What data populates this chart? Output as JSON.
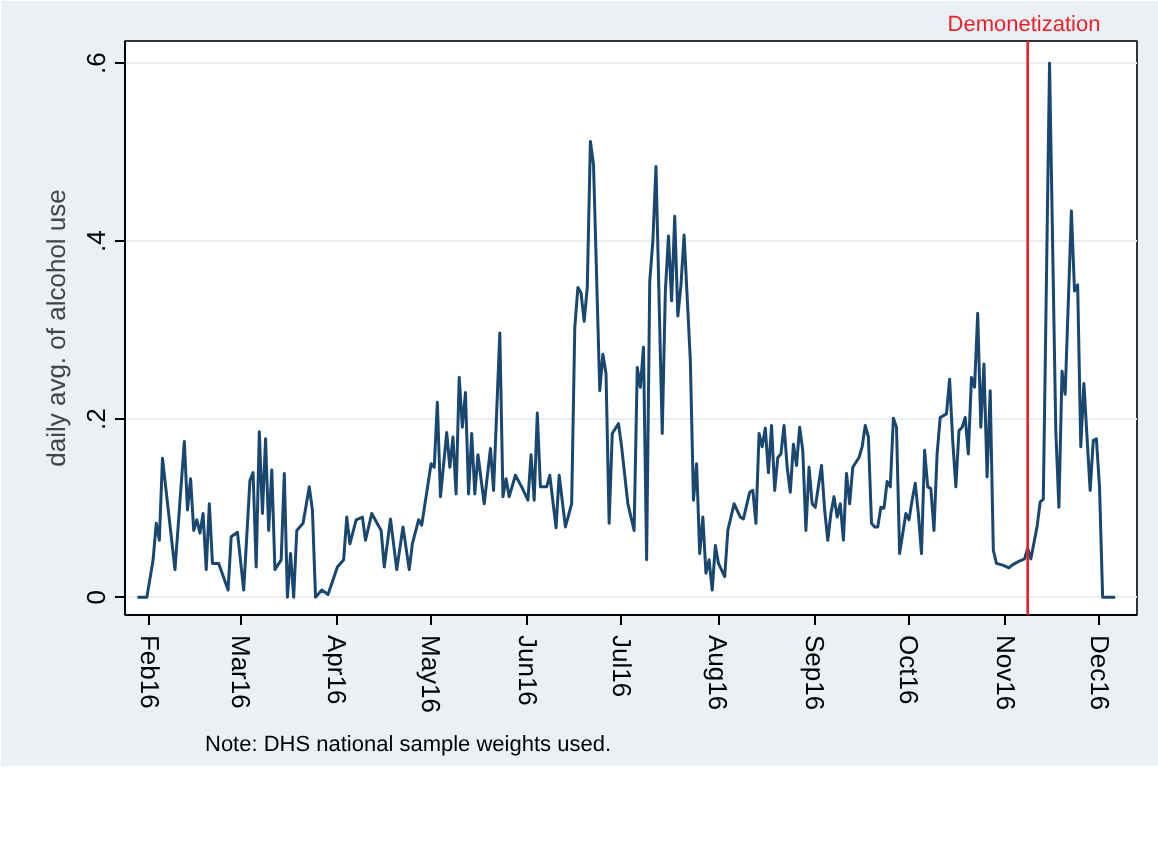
{
  "chart_data": {
    "type": "line",
    "ylabel": "daily avg. of alcohol use",
    "x": [
      "2016-01-28",
      "2016-01-31",
      "2016-02-02",
      "2016-02-03",
      "2016-02-04",
      "2016-02-05",
      "2016-02-09",
      "2016-02-12",
      "2016-02-13",
      "2016-02-14",
      "2016-02-15",
      "2016-02-16",
      "2016-02-17",
      "2016-02-18",
      "2016-02-19",
      "2016-02-20",
      "2016-02-21",
      "2016-02-23",
      "2016-02-26",
      "2016-02-27",
      "2016-02-29",
      "2016-03-02",
      "2016-03-04",
      "2016-03-05",
      "2016-03-06",
      "2016-03-07",
      "2016-03-08",
      "2016-03-09",
      "2016-03-10",
      "2016-03-11",
      "2016-03-12",
      "2016-03-14",
      "2016-03-15",
      "2016-03-16",
      "2016-03-17",
      "2016-03-18",
      "2016-03-19",
      "2016-03-21",
      "2016-03-23",
      "2016-03-24",
      "2016-03-25",
      "2016-03-27",
      "2016-03-29",
      "2016-04-01",
      "2016-04-03",
      "2016-04-04",
      "2016-04-05",
      "2016-04-07",
      "2016-04-09",
      "2016-04-10",
      "2016-04-12",
      "2016-04-15",
      "2016-04-16",
      "2016-04-18",
      "2016-04-20",
      "2016-04-22",
      "2016-04-24",
      "2016-04-25",
      "2016-04-27",
      "2016-04-28",
      "2016-05-01",
      "2016-05-02",
      "2016-05-03",
      "2016-05-04",
      "2016-05-06",
      "2016-05-07",
      "2016-05-08",
      "2016-05-09",
      "2016-05-10",
      "2016-05-11",
      "2016-05-12",
      "2016-05-13",
      "2016-05-14",
      "2016-05-15",
      "2016-05-16",
      "2016-05-18",
      "2016-05-20",
      "2016-05-21",
      "2016-05-23",
      "2016-05-24",
      "2016-05-25",
      "2016-05-26",
      "2016-05-28",
      "2016-05-30",
      "2016-06-01",
      "2016-06-02",
      "2016-06-03",
      "2016-06-04",
      "2016-06-05",
      "2016-06-07",
      "2016-06-08",
      "2016-06-10",
      "2016-06-11",
      "2016-06-13",
      "2016-06-15",
      "2016-06-16",
      "2016-06-17",
      "2016-06-18",
      "2016-06-19",
      "2016-06-20",
      "2016-06-21",
      "2016-06-22",
      "2016-06-24",
      "2016-06-25",
      "2016-06-26",
      "2016-06-27",
      "2016-06-28",
      "2016-06-30",
      "2016-07-01",
      "2016-07-03",
      "2016-07-05",
      "2016-07-06",
      "2016-07-07",
      "2016-07-08",
      "2016-07-09",
      "2016-07-10",
      "2016-07-11",
      "2016-07-12",
      "2016-07-13",
      "2016-07-14",
      "2016-07-15",
      "2016-07-16",
      "2016-07-17",
      "2016-07-18",
      "2016-07-19",
      "2016-07-20",
      "2016-07-21",
      "2016-07-23",
      "2016-07-24",
      "2016-07-25",
      "2016-07-26",
      "2016-07-27",
      "2016-07-28",
      "2016-07-29",
      "2016-07-30",
      "2016-07-31",
      "2016-08-01",
      "2016-08-03",
      "2016-08-04",
      "2016-08-06",
      "2016-08-08",
      "2016-08-09",
      "2016-08-11",
      "2016-08-12",
      "2016-08-13",
      "2016-08-14",
      "2016-08-15",
      "2016-08-16",
      "2016-08-17",
      "2016-08-18",
      "2016-08-19",
      "2016-08-20",
      "2016-08-21",
      "2016-08-22",
      "2016-08-23",
      "2016-08-24",
      "2016-08-25",
      "2016-08-26",
      "2016-08-27",
      "2016-08-28",
      "2016-08-29",
      "2016-08-30",
      "2016-08-31",
      "2016-09-01",
      "2016-09-03",
      "2016-09-04",
      "2016-09-05",
      "2016-09-06",
      "2016-09-07",
      "2016-09-08",
      "2016-09-09",
      "2016-09-10",
      "2016-09-11",
      "2016-09-12",
      "2016-09-13",
      "2016-09-15",
      "2016-09-16",
      "2016-09-17",
      "2016-09-18",
      "2016-09-19",
      "2016-09-20",
      "2016-09-21",
      "2016-09-22",
      "2016-09-23",
      "2016-09-24",
      "2016-09-25",
      "2016-09-26",
      "2016-09-27",
      "2016-09-28",
      "2016-09-30",
      "2016-10-01",
      "2016-10-02",
      "2016-10-03",
      "2016-10-04",
      "2016-10-05",
      "2016-10-06",
      "2016-10-07",
      "2016-10-08",
      "2016-10-09",
      "2016-10-10",
      "2016-10-11",
      "2016-10-13",
      "2016-10-14",
      "2016-10-15",
      "2016-10-16",
      "2016-10-17",
      "2016-10-18",
      "2016-10-19",
      "2016-10-20",
      "2016-10-21",
      "2016-10-22",
      "2016-10-23",
      "2016-10-24",
      "2016-10-25",
      "2016-10-26",
      "2016-10-27",
      "2016-10-28",
      "2016-10-29",
      "2016-10-31",
      "2016-11-02",
      "2016-11-03",
      "2016-11-05",
      "2016-11-07",
      "2016-11-08",
      "2016-11-09",
      "2016-11-11",
      "2016-11-12",
      "2016-11-13",
      "2016-11-15",
      "2016-11-17",
      "2016-11-18",
      "2016-11-19",
      "2016-11-20",
      "2016-11-22",
      "2016-11-23",
      "2016-11-24",
      "2016-11-25",
      "2016-11-26",
      "2016-11-28",
      "2016-11-29",
      "2016-11-30",
      "2016-12-01",
      "2016-12-02",
      "2016-12-06"
    ],
    "series": [
      {
        "color": "#1a476f",
        "values": [
          0,
          0,
          0.042,
          0.083,
          0.064,
          0.156,
          0.031,
          0.175,
          0.098,
          0.133,
          0.075,
          0.087,
          0.072,
          0.094,
          0.031,
          0.105,
          0.038,
          0.038,
          0.008,
          0.068,
          0.073,
          0.008,
          0.131,
          0.14,
          0.034,
          0.186,
          0.094,
          0.178,
          0.075,
          0.143,
          0.031,
          0.042,
          0.139,
          0,
          0.049,
          0,
          0.075,
          0.083,
          0.124,
          0.098,
          0,
          0.008,
          0.003,
          0.034,
          0.042,
          0.09,
          0.06,
          0.087,
          0.09,
          0.064,
          0.094,
          0.075,
          0.034,
          0.088,
          0.031,
          0.079,
          0.031,
          0.06,
          0.087,
          0.081,
          0.15,
          0.146,
          0.219,
          0.113,
          0.185,
          0.146,
          0.18,
          0.116,
          0.247,
          0.191,
          0.23,
          0.116,
          0.184,
          0.116,
          0.16,
          0.105,
          0.167,
          0.12,
          0.297,
          0.113,
          0.133,
          0.113,
          0.137,
          0.124,
          0.109,
          0.16,
          0.109,
          0.207,
          0.124,
          0.124,
          0.137,
          0.078,
          0.137,
          0.079,
          0.105,
          0.303,
          0.348,
          0.342,
          0.31,
          0.348,
          0.512,
          0.486,
          0.232,
          0.273,
          0.251,
          0.083,
          0.184,
          0.195,
          0.169,
          0.105,
          0.075,
          0.258,
          0.236,
          0.281,
          0.042,
          0.355,
          0.4,
          0.484,
          0.333,
          0.184,
          0.344,
          0.406,
          0.333,
          0.428,
          0.316,
          0.351,
          0.407,
          0.266,
          0.109,
          0.15,
          0.049,
          0.09,
          0.027,
          0.042,
          0.008,
          0.058,
          0.038,
          0.023,
          0.075,
          0.105,
          0.09,
          0.088,
          0.118,
          0.12,
          0.083,
          0.184,
          0.169,
          0.19,
          0.14,
          0.193,
          0.12,
          0.157,
          0.161,
          0.193,
          0.146,
          0.118,
          0.172,
          0.148,
          0.191,
          0.165,
          0.075,
          0.146,
          0.105,
          0.101,
          0.148,
          0.098,
          0.064,
          0.094,
          0.113,
          0.09,
          0.105,
          0.064,
          0.139,
          0.105,
          0.146,
          0.157,
          0.169,
          0.193,
          0.18,
          0.083,
          0.079,
          0.079,
          0.101,
          0.1,
          0.13,
          0.124,
          0.201,
          0.191,
          0.049,
          0.094,
          0.087,
          0.109,
          0.128,
          0.094,
          0.049,
          0.165,
          0.124,
          0.122,
          0.075,
          0.161,
          0.202,
          0.206,
          0.245,
          0.176,
          0.124,
          0.187,
          0.191,
          0.202,
          0.161,
          0.247,
          0.236,
          0.319,
          0.191,
          0.262,
          0.135,
          0.232,
          0.053,
          0.038,
          0.036,
          0.033,
          0.036,
          0.04,
          0.043,
          0.055,
          0.043,
          0.079,
          0.107,
          0.11,
          0.6,
          0.187,
          0.101,
          0.254,
          0.228,
          0.434,
          0.344,
          0.351,
          0.169,
          0.24,
          0.12,
          0.176,
          0.178,
          0.124,
          0,
          0
        ]
      }
    ],
    "xlim": [
      "2016-01-24",
      "2016-12-13"
    ],
    "xticks": [
      {
        "value": "2016-02-01",
        "label": "Feb16"
      },
      {
        "value": "2016-03-01",
        "label": "Mar16"
      },
      {
        "value": "2016-04-01",
        "label": "Apr16"
      },
      {
        "value": "2016-05-01",
        "label": "May16"
      },
      {
        "value": "2016-06-01",
        "label": "Jun16"
      },
      {
        "value": "2016-07-01",
        "label": "Jul16"
      },
      {
        "value": "2016-08-01",
        "label": "Aug16"
      },
      {
        "value": "2016-09-01",
        "label": "Sep16"
      },
      {
        "value": "2016-10-01",
        "label": "Oct16"
      },
      {
        "value": "2016-11-01",
        "label": "Nov16"
      },
      {
        "value": "2016-12-01",
        "label": "Dec16"
      }
    ],
    "ylim": [
      -0.02,
      0.625
    ],
    "yticks": [
      0,
      {
        "value": 0.2,
        "label": ".2"
      },
      {
        "value": 0.4,
        "label": ".4"
      },
      {
        "value": 0.6,
        "label": ".6"
      }
    ],
    "grid": "y",
    "marker": "none",
    "line_style": "solid",
    "ref_lines": [
      {
        "axis": "x",
        "value": "2016-11-08",
        "label": "Demonetization",
        "color": "#e8202a"
      }
    ],
    "annotations": [
      "Note: DHS national sample weights used."
    ]
  }
}
